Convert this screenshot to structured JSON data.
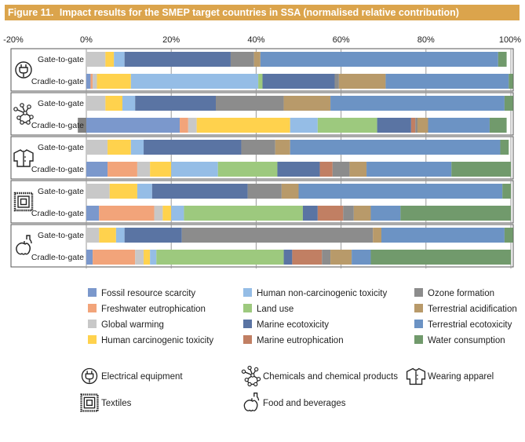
{
  "figure": {
    "number": "Figure 11.",
    "title": "Impact results for the SMEP target countries in SSA (normalised relative contribution)"
  },
  "colors": {
    "header_bg": "#dba44c",
    "grid": "#999999"
  },
  "chart_data": {
    "type": "bar",
    "orientation": "horizontal",
    "stacked": true,
    "xlim": [
      -20,
      100
    ],
    "x_ticks": [
      "-20%",
      "0%",
      "20%",
      "40%",
      "60%",
      "80%",
      "100%"
    ],
    "grid": true,
    "legend_position": "bottom",
    "categories": [
      {
        "group": "Electrical equipment",
        "group_icon": "electric-plug-icon",
        "label": "Gate-to-gate"
      },
      {
        "group": "Electrical equipment",
        "group_icon": "electric-plug-icon",
        "label": "Cradle-to-gate"
      },
      {
        "group": "Chemicals and chemical products",
        "group_icon": "molecule-icon",
        "label": "Gate-to-gate"
      },
      {
        "group": "Chemicals and chemical products",
        "group_icon": "molecule-icon",
        "label": "Cradle-to-gate"
      },
      {
        "group": "Wearing apparel",
        "group_icon": "shirt-icon",
        "label": "Gate-to-gate"
      },
      {
        "group": "Wearing apparel",
        "group_icon": "shirt-icon",
        "label": "Cradle-to-gate"
      },
      {
        "group": "Textiles",
        "group_icon": "fabric-icon",
        "label": "Gate-to-gate"
      },
      {
        "group": "Textiles",
        "group_icon": "fabric-icon",
        "label": "Cradle-to-gate"
      },
      {
        "group": "Food and beverages",
        "group_icon": "food-icon",
        "label": "Gate-to-gate"
      },
      {
        "group": "Food and beverages",
        "group_icon": "food-icon",
        "label": "Cradle-to-gate"
      }
    ],
    "series": [
      {
        "name": "Fossil resource scarcity",
        "color": "#7b98cc",
        "values": [
          0,
          1,
          0,
          22,
          0,
          5,
          0,
          3,
          0,
          1.5
        ]
      },
      {
        "name": "Freshwater eutrophication",
        "color": "#f2a47a",
        "values": [
          0,
          0.5,
          0,
          2,
          0,
          7,
          0,
          13,
          0,
          10
        ]
      },
      {
        "name": "Global warming",
        "color": "#c8c8c8",
        "values": [
          4.5,
          1,
          4.5,
          2,
          5,
          3,
          5.5,
          2,
          3,
          2
        ]
      },
      {
        "name": "Human carcinogenic toxicity",
        "color": "#ffd24d",
        "values": [
          2,
          8,
          4,
          22,
          5.5,
          5,
          6.5,
          2,
          4,
          1.5
        ]
      },
      {
        "name": "Human non-carcinogenic toxicity",
        "color": "#95bde6",
        "values": [
          2.5,
          30,
          3,
          6.5,
          3,
          11,
          3.5,
          3,
          2,
          1.5
        ]
      },
      {
        "name": "Land use",
        "color": "#9dc97e",
        "values": [
          0,
          1,
          0,
          14,
          0,
          14,
          0,
          28,
          0,
          30
        ]
      },
      {
        "name": "Marine ecotoxicity",
        "color": "#5a74a3",
        "values": [
          25,
          17,
          19,
          8,
          23,
          10,
          22.5,
          3.5,
          13.5,
          2
        ]
      },
      {
        "name": "Marine eutrophication",
        "color": "#c17f63",
        "values": [
          0,
          0,
          0,
          1,
          0,
          3,
          0,
          6,
          0,
          7
        ]
      },
      {
        "name": "Ozone formation",
        "color": "#8c8c8c",
        "values": [
          5.5,
          1,
          16,
          0.5,
          8,
          4,
          8,
          2.5,
          45,
          2
        ]
      },
      {
        "name": "Terrestrial acidification",
        "color": "#b89a6a",
        "values": [
          1.5,
          11,
          11,
          2.5,
          3.5,
          4,
          4,
          4,
          2,
          5
        ]
      },
      {
        "name": "Terrestrial ecotoxicity",
        "color": "#6c93c4",
        "values": [
          56,
          29,
          41,
          14.5,
          49.5,
          20,
          48,
          7,
          29,
          4.5
        ]
      },
      {
        "name": "Water consumption",
        "color": "#719a6c",
        "values": [
          2,
          1,
          2,
          4,
          2,
          14,
          2,
          26,
          2,
          33
        ]
      },
      {
        "name": "",
        "color": "#808080",
        "values": [
          0,
          0,
          0,
          -2,
          0,
          0,
          0,
          0,
          0,
          0
        ]
      }
    ]
  },
  "legend": {
    "columns": [
      [
        "Fossil resource scarcity",
        "Freshwater eutrophication",
        "Global warming",
        "Human carcinogenic toxicity"
      ],
      [
        "Human non-carcinogenic toxicity",
        "Land use",
        "Marine ecotoxicity",
        "Marine eutrophication"
      ],
      [
        "Ozone formation",
        "Terrestrial acidification",
        "Terrestrial ecotoxicity",
        "Water consumption"
      ]
    ]
  },
  "icon_legend": [
    {
      "icon": "electric-plug-icon",
      "label": "Electrical equipment"
    },
    {
      "icon": "molecule-icon",
      "label": "Chemicals and chemical products"
    },
    {
      "icon": "shirt-icon",
      "label": "Wearing apparel"
    },
    {
      "icon": "fabric-icon",
      "label": "Textiles"
    },
    {
      "icon": "food-icon",
      "label": "Food and beverages"
    }
  ]
}
